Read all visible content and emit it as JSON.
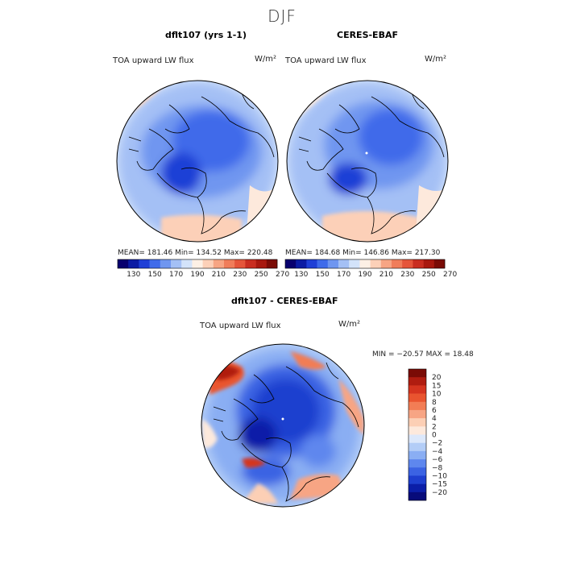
{
  "title": "DJF",
  "panels": [
    {
      "title": "dflt107 (yrs 1-1)",
      "variable": "TOA upward LW flux",
      "units": "W/m²",
      "stats": "MEAN= 181.46   Min= 134.52   Max= 220.48"
    },
    {
      "title": "CERES-EBAF",
      "variable": "TOA upward LW flux",
      "units": "W/m²",
      "stats": "MEAN= 184.68   Min= 146.86   Max= 217.30"
    },
    {
      "title": "dflt107 - CERES-EBAF",
      "variable": "TOA upward LW flux",
      "units": "W/m²",
      "stats": "MIN = −20.57  MAX =   18.48"
    }
  ],
  "colorbar_top": {
    "labels": [
      "130",
      "150",
      "170",
      "190",
      "210",
      "230",
      "250",
      "270"
    ],
    "colors": [
      "#08006e",
      "#0b1ba3",
      "#1f3fd6",
      "#3f6bea",
      "#6f96f0",
      "#a4c0f5",
      "#d3e3fa",
      "#fdf0e5",
      "#fcd0b8",
      "#f7a584",
      "#f07d5a",
      "#e5553a",
      "#c92d20",
      "#a8180f",
      "#7a0b06"
    ]
  },
  "colorbar_diff": {
    "labels": [
      "20",
      "15",
      "10",
      "8",
      "6",
      "4",
      "2",
      "0",
      "−2",
      "−4",
      "−6",
      "−8",
      "−10",
      "−15",
      "−20"
    ],
    "colors": [
      "#7a0b06",
      "#b01c10",
      "#d5341f",
      "#e9542f",
      "#f27d55",
      "#f7a584",
      "#fccfb5",
      "#fde9dc",
      "#dce8fb",
      "#b3cdf7",
      "#8aaef3",
      "#5e87ee",
      "#3b63e3",
      "#1e3fcf",
      "#0b1ea8",
      "#070b7a"
    ]
  },
  "colors": {
    "land_outline": "#000000",
    "map_border": "#000000"
  }
}
